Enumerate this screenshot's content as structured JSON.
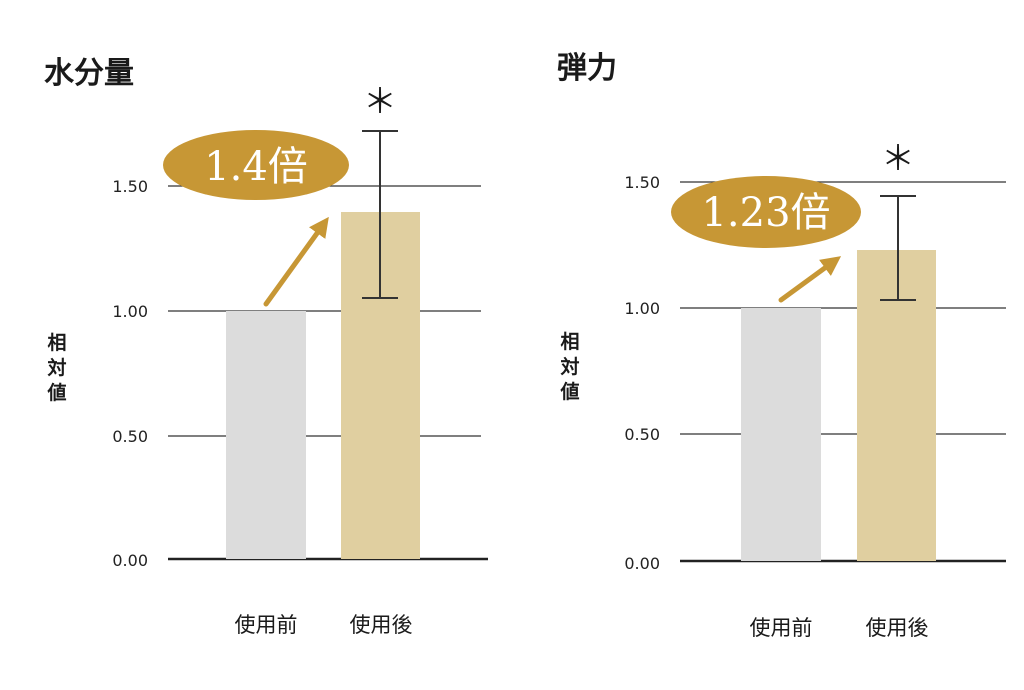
{
  "colors": {
    "before_bar": "#dcdcdc",
    "after_bar": "#e0cfa0",
    "accent": "#c79735",
    "grid": "#333333",
    "errorbar": "#333333"
  },
  "chart_data": [
    {
      "type": "bar",
      "title": "水分量",
      "ylabel": "相対値",
      "categories": [
        "使用前",
        "使用後"
      ],
      "values": [
        1.0,
        1.4
      ],
      "error_bars": [
        null,
        {
          "low": 1.05,
          "high": 1.72
        }
      ],
      "significance_marker": "＊",
      "annotation": "1.4倍",
      "yticks": [
        "0.00",
        "0.50",
        "1.00",
        "1.50"
      ],
      "ylim": [
        0,
        1.75
      ],
      "grid": true
    },
    {
      "type": "bar",
      "title": "弾力",
      "ylabel": "相対値",
      "categories": [
        "使用前",
        "使用後"
      ],
      "values": [
        1.0,
        1.23
      ],
      "error_bars": [
        null,
        {
          "low": 1.03,
          "high": 1.44
        }
      ],
      "significance_marker": "＊",
      "annotation": "1.23倍",
      "yticks": [
        "0.00",
        "0.50",
        "1.00",
        "1.50"
      ],
      "ylim": [
        0,
        1.75
      ],
      "grid": true
    }
  ]
}
